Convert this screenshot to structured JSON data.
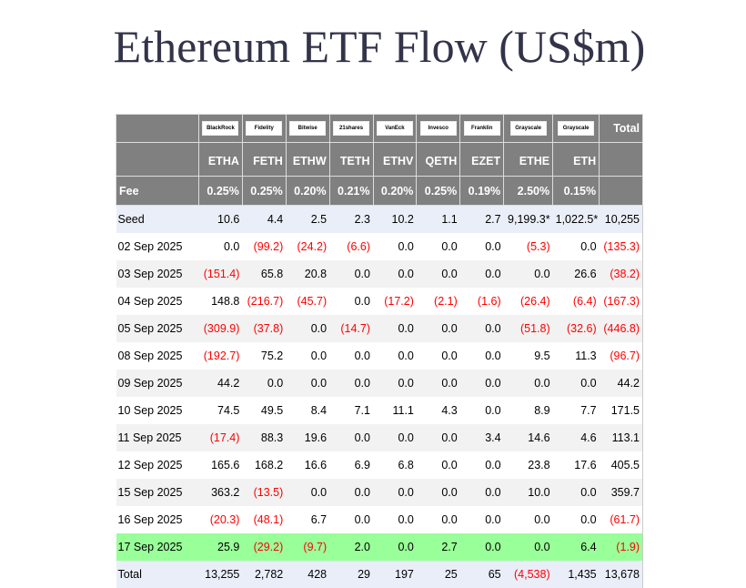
{
  "title": "Ethereum ETF Flow (US$m)",
  "issuers": [
    "BlackRock",
    "Fidelity",
    "Bitwise",
    "21shares",
    "VanEck",
    "Invesco",
    "Franklin Templeton",
    "Grayscale",
    "Grayscale"
  ],
  "total_label": "Total",
  "tickers": [
    "ETHA",
    "FETH",
    "ETHW",
    "TETH",
    "ETHV",
    "QETH",
    "EZET",
    "ETHE",
    "ETH"
  ],
  "fee_label": "Fee",
  "fees": [
    "0.25%",
    "0.25%",
    "0.20%",
    "0.21%",
    "0.20%",
    "0.25%",
    "0.19%",
    "2.50%",
    "0.15%"
  ],
  "colors": {
    "header": "#808080",
    "highlight": "#99ff99",
    "negative": "#ff0000"
  },
  "rows": [
    {
      "label": "Seed",
      "style": "blue",
      "values": [
        "10.6",
        "4.4",
        "2.5",
        "2.3",
        "10.2",
        "1.1",
        "2.7",
        "9,199.3*",
        "1,022.5*",
        "10,255"
      ]
    },
    {
      "label": "02 Sep 2025",
      "style": "white",
      "values": [
        "0.0",
        "(99.2)",
        "(24.2)",
        "(6.6)",
        "0.0",
        "0.0",
        "0.0",
        "(5.3)",
        "0.0",
        "(135.3)"
      ]
    },
    {
      "label": "03 Sep 2025",
      "style": "grey",
      "values": [
        "(151.4)",
        "65.8",
        "20.8",
        "0.0",
        "0.0",
        "0.0",
        "0.0",
        "0.0",
        "26.6",
        "(38.2)"
      ]
    },
    {
      "label": "04 Sep 2025",
      "style": "white",
      "values": [
        "148.8",
        "(216.7)",
        "(45.7)",
        "0.0",
        "(17.2)",
        "(2.1)",
        "(1.6)",
        "(26.4)",
        "(6.4)",
        "(167.3)"
      ]
    },
    {
      "label": "05 Sep 2025",
      "style": "grey",
      "values": [
        "(309.9)",
        "(37.8)",
        "0.0",
        "(14.7)",
        "0.0",
        "0.0",
        "0.0",
        "(51.8)",
        "(32.6)",
        "(446.8)"
      ]
    },
    {
      "label": "08 Sep 2025",
      "style": "white",
      "values": [
        "(192.7)",
        "75.2",
        "0.0",
        "0.0",
        "0.0",
        "0.0",
        "0.0",
        "9.5",
        "11.3",
        "(96.7)"
      ]
    },
    {
      "label": "09 Sep 2025",
      "style": "grey",
      "values": [
        "44.2",
        "0.0",
        "0.0",
        "0.0",
        "0.0",
        "0.0",
        "0.0",
        "0.0",
        "0.0",
        "44.2"
      ]
    },
    {
      "label": "10 Sep 2025",
      "style": "white",
      "values": [
        "74.5",
        "49.5",
        "8.4",
        "7.1",
        "11.1",
        "4.3",
        "0.0",
        "8.9",
        "7.7",
        "171.5"
      ]
    },
    {
      "label": "11 Sep 2025",
      "style": "grey",
      "values": [
        "(17.4)",
        "88.3",
        "19.6",
        "0.0",
        "0.0",
        "0.0",
        "3.4",
        "14.6",
        "4.6",
        "113.1"
      ]
    },
    {
      "label": "12 Sep 2025",
      "style": "white",
      "values": [
        "165.6",
        "168.2",
        "16.6",
        "6.9",
        "6.8",
        "0.0",
        "0.0",
        "23.8",
        "17.6",
        "405.5"
      ]
    },
    {
      "label": "15 Sep 2025",
      "style": "grey",
      "values": [
        "363.2",
        "(13.5)",
        "0.0",
        "0.0",
        "0.0",
        "0.0",
        "0.0",
        "10.0",
        "0.0",
        "359.7"
      ]
    },
    {
      "label": "16 Sep 2025",
      "style": "white",
      "values": [
        "(20.3)",
        "(48.1)",
        "6.7",
        "0.0",
        "0.0",
        "0.0",
        "0.0",
        "0.0",
        "0.0",
        "(61.7)"
      ]
    },
    {
      "label": "17 Sep 2025",
      "style": "green",
      "values": [
        "25.9",
        "(29.2)",
        "(9.7)",
        "2.0",
        "0.0",
        "2.7",
        "0.0",
        "0.0",
        "6.4",
        "(1.9)"
      ]
    },
    {
      "label": "Total",
      "style": "blue",
      "values": [
        "13,255",
        "2,782",
        "428",
        "29",
        "197",
        "25",
        "65",
        "(4,538)",
        "1,435",
        "13,678"
      ]
    }
  ]
}
